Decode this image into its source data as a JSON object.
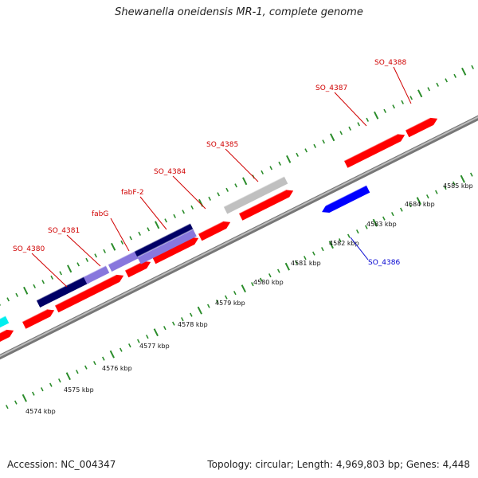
{
  "title": "Shewanella oneidensis MR-1, complete genome",
  "footer": {
    "accession": "Accession: NC_004347",
    "summary": "Topology: circular; Length: 4,969,803 bp; Genes: 4,448"
  },
  "colors": {
    "forward_cds": "#ff0000",
    "reverse_cds": "#0000ff",
    "label_forward": "#d00000",
    "label_reverse": "#0000d0",
    "backbone": "#999999",
    "ticks": "#2a8c2a",
    "navy": "#000066",
    "lavender": "#8877dd",
    "grey": "#c0c0c0",
    "cyan": "#00eeee"
  },
  "kbp_labels": [
    "4574 kbp",
    "4575 kbp",
    "4576 kbp",
    "4577 kbp",
    "4578 kbp",
    "4579 kbp",
    "4580 kbp",
    "4581 kbp",
    "4582 kbp",
    "4583 kbp",
    "4584 kbp",
    "4585 kbp"
  ],
  "gene_labels": [
    {
      "name": "SO_4380",
      "strand": "forward"
    },
    {
      "name": "SO_4381",
      "strand": "forward"
    },
    {
      "name": "fabG",
      "strand": "forward"
    },
    {
      "name": "fabF-2",
      "strand": "forward"
    },
    {
      "name": "SO_4384",
      "strand": "forward"
    },
    {
      "name": "SO_4385",
      "strand": "forward"
    },
    {
      "name": "SO_4387",
      "strand": "forward"
    },
    {
      "name": "SO_4388",
      "strand": "forward"
    },
    {
      "name": "SO_4386",
      "strand": "reverse"
    }
  ]
}
